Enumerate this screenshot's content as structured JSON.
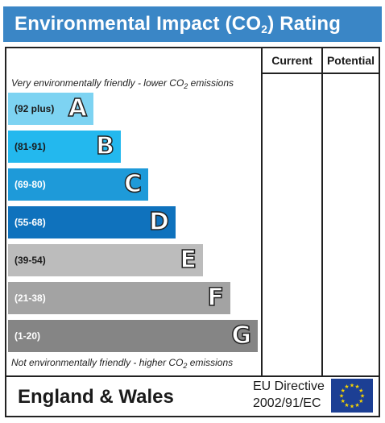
{
  "header": {
    "title_pre": "Environmental Impact (CO",
    "title_sub": "2",
    "title_post": ") Rating"
  },
  "columns": {
    "current": "Current",
    "potential": "Potential"
  },
  "notes": {
    "top_pre": "Very environmentally friendly - lower CO",
    "top_sub": "2",
    "top_post": " emissions",
    "bottom_pre": "Not environmentally friendly - higher CO",
    "bottom_sub": "2",
    "bottom_post": " emissions"
  },
  "footer": {
    "region": "England & Wales",
    "directive_line1": "EU Directive",
    "directive_line2": "2002/91/EC"
  },
  "icons": {
    "eu_flag": "eu-flag-icon"
  },
  "chart_data": {
    "type": "bar",
    "categories": [
      "A",
      "B",
      "C",
      "D",
      "E",
      "F",
      "G"
    ],
    "ranges": [
      "(92 plus)",
      "(81-91)",
      "(69-80)",
      "(55-68)",
      "(39-54)",
      "(21-38)",
      "(1-20)"
    ],
    "values": [
      1,
      2,
      3,
      4,
      5,
      6,
      7
    ],
    "colors": [
      "#7dd3f2",
      "#23b8ee",
      "#1e9ad9",
      "#0f72bd",
      "#bcbcbc",
      "#a3a3a3",
      "#858585"
    ],
    "range_text_colors": [
      "#1a1a1a",
      "#1a1a1a",
      "#ffffff",
      "#ffffff",
      "#1a1a1a",
      "#ffffff",
      "#ffffff"
    ],
    "current": null,
    "potential": null
  }
}
